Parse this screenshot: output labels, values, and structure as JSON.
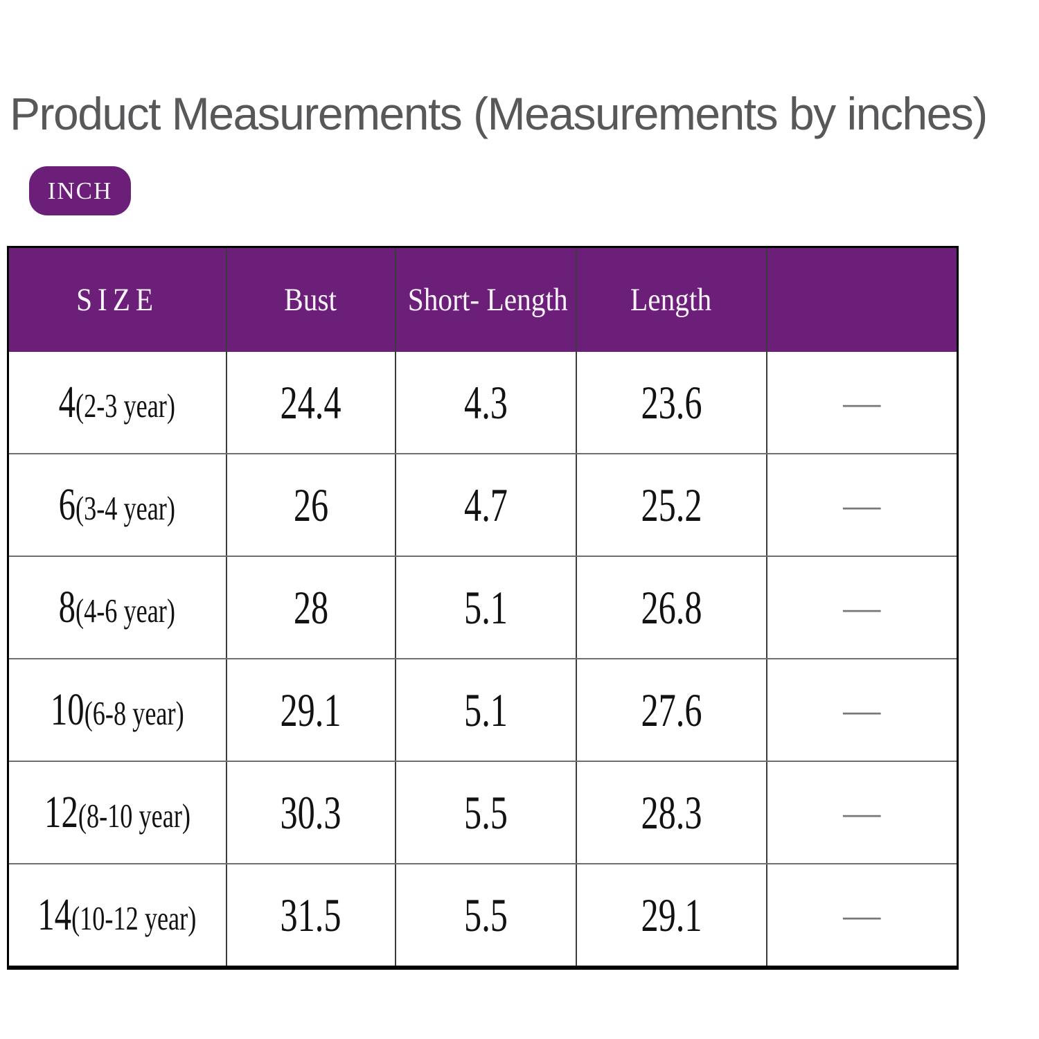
{
  "title": "Product Measurements (Measurements by inches)",
  "unit_badge": "INCH",
  "colors": {
    "accent_purple": "#6b1f78",
    "title_gray": "#58585a",
    "dash_gray": "#787878"
  },
  "table": {
    "headers": [
      "SIZE",
      "Bust",
      "Short- Length",
      "Length",
      ""
    ],
    "rows": [
      {
        "size": "4",
        "age": "(2-3 year)",
        "bust": "24.4",
        "short_length": "4.3",
        "length": "23.6",
        "extra": "—"
      },
      {
        "size": "6",
        "age": "(3-4 year)",
        "bust": "26",
        "short_length": "4.7",
        "length": "25.2",
        "extra": "—"
      },
      {
        "size": "8",
        "age": "(4-6 year)",
        "bust": "28",
        "short_length": "5.1",
        "length": "26.8",
        "extra": "—"
      },
      {
        "size": "10",
        "age": "(6-8 year)",
        "bust": "29.1",
        "short_length": "5.1",
        "length": "27.6",
        "extra": "—"
      },
      {
        "size": "12",
        "age": "(8-10 year)",
        "bust": "30.3",
        "short_length": "5.5",
        "length": "28.3",
        "extra": "—"
      },
      {
        "size": "14",
        "age": "(10-12 year)",
        "bust": "31.5",
        "short_length": "5.5",
        "length": "29.1",
        "extra": "—"
      }
    ]
  }
}
